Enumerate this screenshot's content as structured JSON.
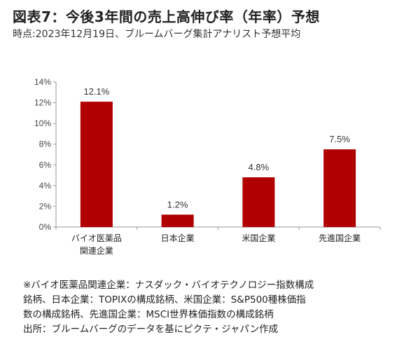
{
  "title": "図表7：今後3年間の売上高伸び率（年率）予想",
  "subtitle": "時点:2023年12月19日、ブルームバーグ集計アナリスト予想平均",
  "chart_data": {
    "type": "bar",
    "categories": [
      [
        "バイオ医薬品",
        "関連企業"
      ],
      [
        "日本企業"
      ],
      [
        "米国企業"
      ],
      [
        "先進国企業"
      ]
    ],
    "values": [
      12.1,
      1.2,
      4.8,
      7.5
    ],
    "data_labels": [
      "12.1%",
      "1.2%",
      "4.8%",
      "7.5%"
    ],
    "ylim": [
      0,
      14
    ],
    "yticks": [
      0,
      2,
      4,
      6,
      8,
      10,
      12,
      14
    ],
    "ytick_labels": [
      "0%",
      "2%",
      "4%",
      "6%",
      "8%",
      "10%",
      "12%",
      "14%"
    ],
    "bar_color": "#b00000",
    "grid": false,
    "xlabel": "",
    "ylabel": ""
  },
  "notes": [
    "※バイオ医薬品関連企業：ナスダック・バイオテクノロジー指数構成",
    "銘柄、日本企業：TOPIXの構成銘柄、米国企業：S&P500種株価指",
    "数の構成銘柄、先進国企業：MSCI世界株価指数の構成銘柄",
    "出所：ブルームバーグのデータを基にピクテ・ジャパン作成"
  ]
}
